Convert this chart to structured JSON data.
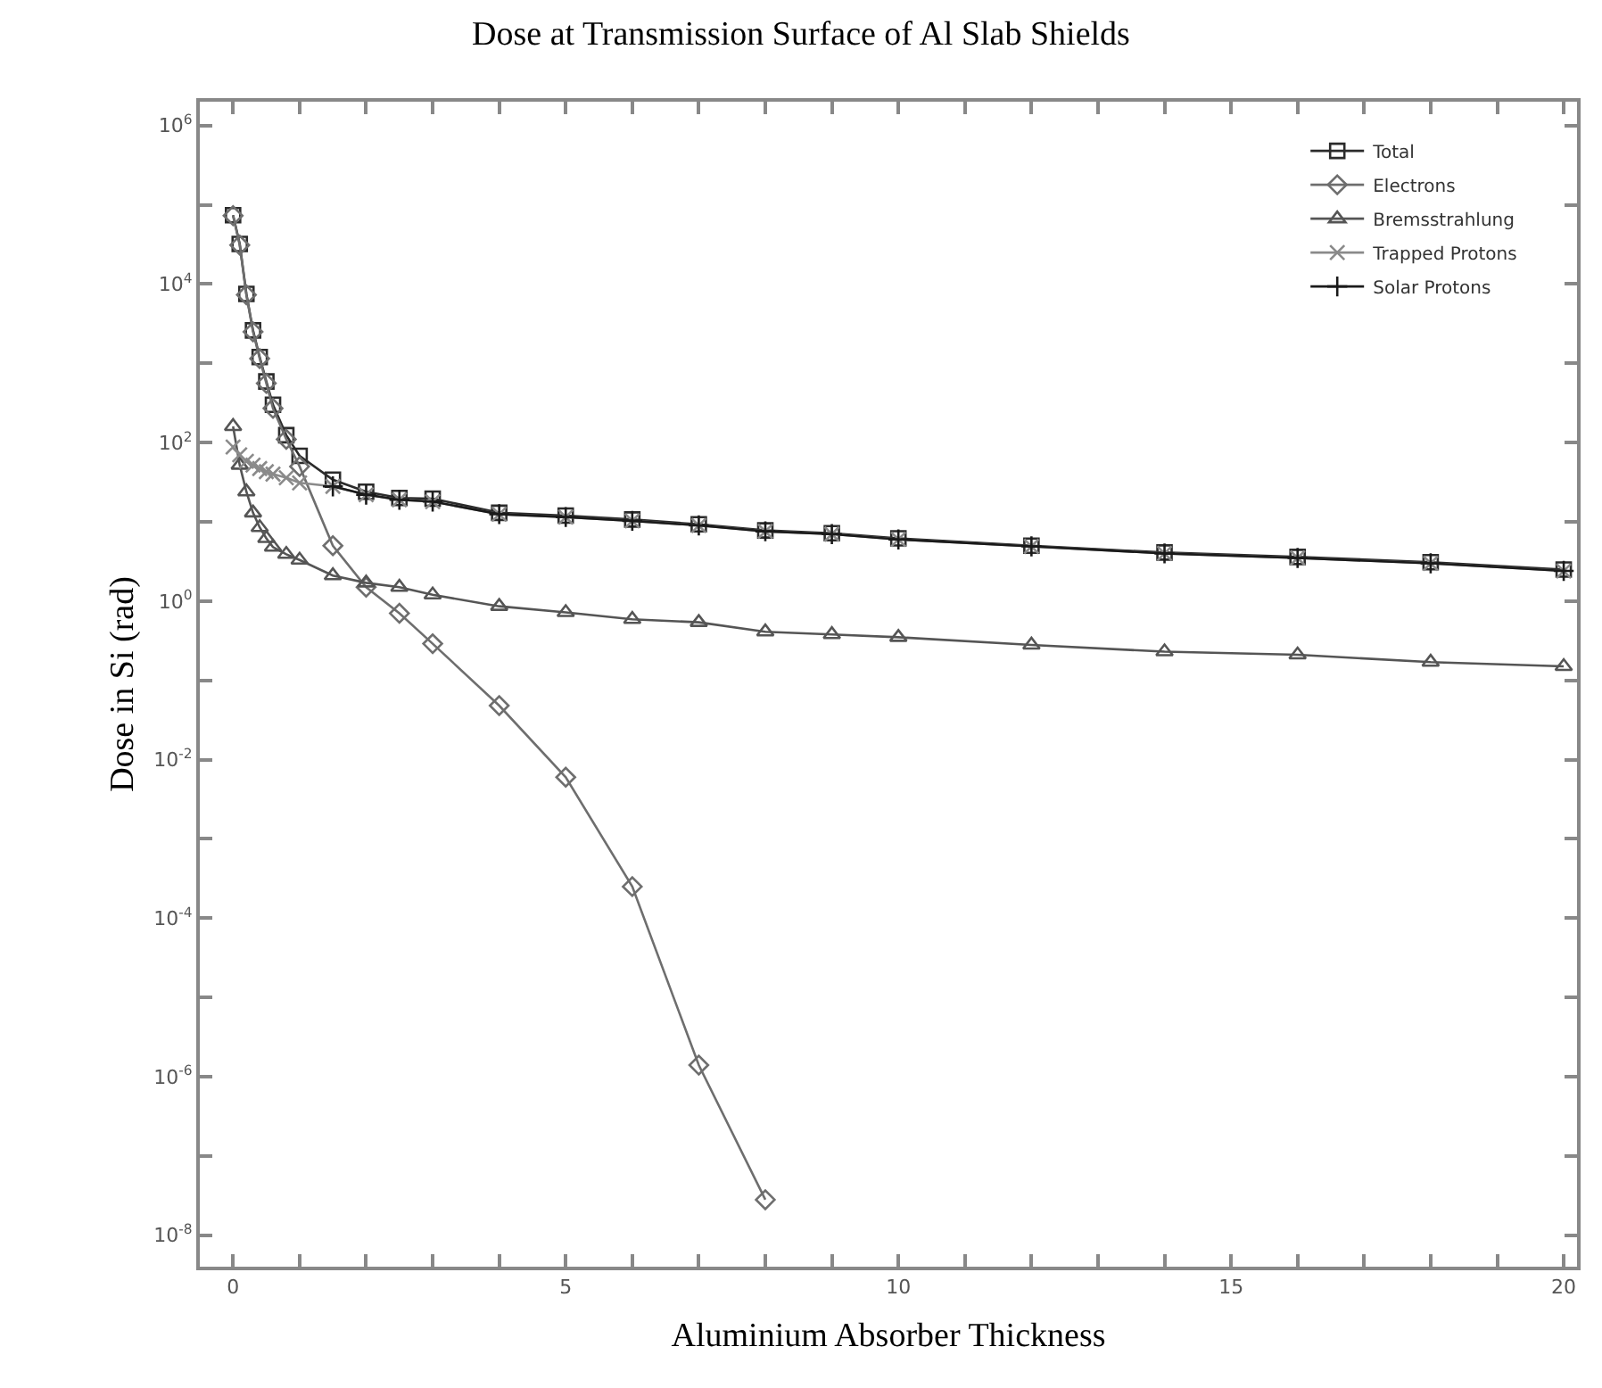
{
  "chart_data": {
    "type": "line",
    "title": "Dose at Transmission Surface of Al Slab Shields",
    "xlabel": "Aluminium Absorber Thickness",
    "ylabel": "Dose in Si (rad)",
    "log": "y",
    "legend": "top right",
    "line_style": "solid",
    "xlim": [
      -0.5,
      20.2
    ],
    "ylim": [
      4e-09,
      2000000.0
    ],
    "xticks": [
      0,
      {
        "value": 1,
        "label": null
      },
      {
        "value": 2,
        "label": null
      },
      {
        "value": 3,
        "label": null
      },
      {
        "value": 4,
        "label": null
      },
      5,
      {
        "value": 6,
        "label": null
      },
      {
        "value": 7,
        "label": null
      },
      {
        "value": 8,
        "label": null
      },
      {
        "value": 9,
        "label": null
      },
      10,
      {
        "value": 11,
        "label": null
      },
      {
        "value": 12,
        "label": null
      },
      {
        "value": 13,
        "label": null
      },
      {
        "value": 14,
        "label": null
      },
      15,
      {
        "value": 16,
        "label": null
      },
      {
        "value": 17,
        "label": null
      },
      {
        "value": 18,
        "label": null
      },
      {
        "value": 19,
        "label": null
      },
      20
    ],
    "yticks": [
      {
        "value": 1e-08,
        "label": "10$^{-8}$"
      },
      {
        "value": 1e-07,
        "label": null
      },
      {
        "value": 1e-06,
        "label": "10$^{-6}$"
      },
      {
        "value": 1e-05,
        "label": null
      },
      {
        "value": 0.0001,
        "label": "10$^{-4}$"
      },
      {
        "value": 0.001,
        "label": null
      },
      {
        "value": 0.01,
        "label": "10$^{-2}$"
      },
      {
        "value": 0.1,
        "label": null
      },
      {
        "value": 1,
        "label": "10$^{0}$"
      },
      {
        "value": 10,
        "label": null
      },
      {
        "value": 100,
        "label": "10$^{2}$"
      },
      {
        "value": 1000,
        "label": null
      },
      {
        "value": 10000,
        "label": "10$^{4}$"
      },
      {
        "value": 100000,
        "label": null
      },
      {
        "value": 1000000,
        "label": "10$^{6}$"
      }
    ],
    "series": [
      {
        "name": "Total",
        "color": "#2b2b2b",
        "marker": "square",
        "x": [
          0,
          0.1,
          0.2,
          0.3,
          0.4,
          0.5,
          0.6,
          0.8,
          1,
          1.5,
          2,
          2.5,
          3,
          4,
          5,
          6,
          7,
          8,
          9,
          10,
          12,
          14,
          16,
          18,
          20
        ],
        "values": [
          74000,
          32000,
          7500,
          2600,
          1200,
          590,
          300,
          124,
          68,
          34,
          24,
          20,
          19.6,
          13,
          12,
          10.7,
          9.3,
          7.8,
          7.2,
          6.2,
          5,
          4.1,
          3.6,
          3.1,
          2.5
        ]
      },
      {
        "name": "Electrons",
        "color": "#6e6e6e",
        "marker": "diamond",
        "x": [
          0,
          0.1,
          0.2,
          0.3,
          0.4,
          0.5,
          0.6,
          0.8,
          1,
          1.5,
          2,
          2.5,
          3,
          4,
          5,
          6,
          7,
          8
        ],
        "values": [
          73000,
          31000,
          7300,
          2500,
          1150,
          560,
          270,
          110,
          50,
          5,
          1.5,
          0.7,
          0.29,
          0.048,
          0.006,
          0.00025,
          1.4e-06,
          2.8e-08
        ]
      },
      {
        "name": "Bremsstrahlung",
        "color": "#555555",
        "marker": "triangle",
        "x": [
          0,
          0.1,
          0.2,
          0.3,
          0.4,
          0.5,
          0.6,
          0.8,
          1,
          1.5,
          2,
          2.5,
          3,
          4,
          5,
          6,
          7,
          8,
          9,
          10,
          12,
          14,
          16,
          18,
          20
        ],
        "values": [
          160,
          52,
          24,
          13,
          8.5,
          6.2,
          4.8,
          3.9,
          3.3,
          2.1,
          1.7,
          1.5,
          1.2,
          0.86,
          0.72,
          0.59,
          0.54,
          0.41,
          0.38,
          0.35,
          0.28,
          0.23,
          0.21,
          0.17,
          0.15
        ]
      },
      {
        "name": "Trapped Protons",
        "color": "#8a8a8a",
        "marker": "cross",
        "x": [
          0,
          0.1,
          0.2,
          0.3,
          0.4,
          0.5,
          0.6,
          0.8,
          1,
          1.5,
          2,
          2.5,
          3,
          4,
          5,
          6,
          7,
          8,
          9,
          10,
          12,
          14,
          16,
          18,
          20
        ],
        "values": [
          88,
          70,
          58,
          52,
          47,
          43,
          40,
          36,
          31,
          28,
          22,
          19,
          18,
          12.5,
          11.5,
          10.3,
          9,
          7.6,
          7,
          6,
          4.9,
          4,
          3.5,
          3,
          2.4
        ]
      },
      {
        "name": "Solar Protons",
        "color": "#1a1a1a",
        "marker": "plus",
        "x": [
          1.5,
          2,
          2.5,
          3,
          4,
          5,
          6,
          7,
          8,
          9,
          10,
          12,
          14,
          16,
          18,
          20
        ],
        "values": [
          28,
          22,
          19,
          18,
          12.5,
          11.5,
          10.3,
          9,
          7.6,
          7,
          6,
          4.9,
          4,
          3.5,
          3,
          2.4
        ]
      }
    ]
  }
}
